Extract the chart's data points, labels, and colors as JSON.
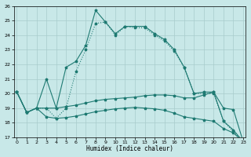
{
  "xlabel": "Humidex (Indice chaleur)",
  "x": [
    0,
    1,
    2,
    3,
    4,
    5,
    6,
    7,
    8,
    9,
    10,
    11,
    12,
    13,
    14,
    15,
    16,
    17,
    18,
    19,
    20,
    21,
    22,
    23
  ],
  "curve_main": [
    20.1,
    18.7,
    19.0,
    21.0,
    19.0,
    21.8,
    22.2,
    23.3,
    25.7,
    24.9,
    24.1,
    24.6,
    24.6,
    24.6,
    24.1,
    23.7,
    23.0,
    21.8,
    20.0,
    20.1,
    20.1,
    18.1,
    17.5,
    16.7
  ],
  "curve_dotted": [
    20.1,
    18.7,
    19.0,
    19.0,
    18.3,
    19.0,
    21.5,
    23.0,
    24.8,
    24.9,
    24.0,
    24.6,
    24.5,
    24.5,
    24.0,
    23.6,
    22.9,
    21.8,
    20.0,
    20.0,
    20.0,
    18.1,
    17.4,
    16.7
  ],
  "curve_flat": [
    20.1,
    18.7,
    19.0,
    19.0,
    19.0,
    19.1,
    19.2,
    19.35,
    19.5,
    19.6,
    19.65,
    19.7,
    19.75,
    19.85,
    19.9,
    19.9,
    19.85,
    19.7,
    19.7,
    19.9,
    20.1,
    19.0,
    18.9,
    16.7
  ],
  "curve_diag": [
    20.1,
    18.7,
    19.0,
    18.4,
    18.3,
    18.35,
    18.45,
    18.6,
    18.75,
    18.85,
    18.95,
    19.0,
    19.05,
    19.0,
    18.95,
    18.85,
    18.65,
    18.4,
    18.3,
    18.2,
    18.1,
    17.6,
    17.3,
    16.7
  ],
  "ylim": [
    17,
    26
  ],
  "xlim_min": -0.3,
  "xlim_max": 23.2,
  "yticks": [
    17,
    18,
    19,
    20,
    21,
    22,
    23,
    24,
    25,
    26
  ],
  "xticks": [
    0,
    1,
    2,
    3,
    4,
    5,
    6,
    7,
    8,
    9,
    10,
    11,
    12,
    13,
    14,
    15,
    16,
    17,
    18,
    19,
    20,
    21,
    22,
    23
  ],
  "line_color": "#1e7a72",
  "bg_color": "#c8e8e8",
  "grid_color": "#a8cccc"
}
